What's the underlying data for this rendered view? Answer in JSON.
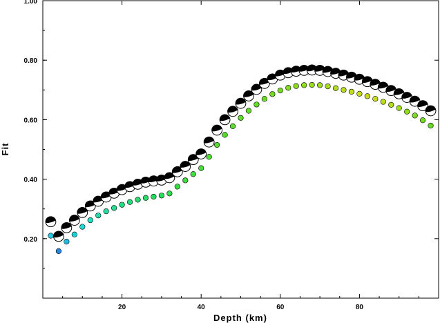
{
  "chart_data": {
    "type": "scatter",
    "title": "",
    "xlabel": "Depth (km)",
    "ylabel": "Fit",
    "xlim": [
      0,
      100
    ],
    "ylim": [
      0,
      1.0
    ],
    "x_ticks": [
      20,
      40,
      60,
      80
    ],
    "x_tick_labels": [
      "20",
      "40",
      "60",
      "80"
    ],
    "y_ticks": [
      0.2,
      0.4,
      0.6,
      0.8,
      1.0
    ],
    "y_tick_labels": [
      "0.20",
      "0.40",
      "0.60",
      "0.80",
      "1.00"
    ],
    "grid": false,
    "series": [
      {
        "marker": "focal-mechanism-beachball",
        "x": [
          2,
          4,
          6,
          8,
          10,
          12,
          14,
          16,
          18,
          20,
          22,
          24,
          26,
          28,
          30,
          32,
          34,
          36,
          38,
          40,
          42,
          44,
          46,
          48,
          50,
          52,
          54,
          56,
          58,
          60,
          62,
          64,
          66,
          68,
          70,
          72,
          74,
          76,
          78,
          80,
          82,
          84,
          86,
          88,
          90,
          92,
          94,
          96,
          98
        ],
        "y": [
          0.257,
          0.208,
          0.237,
          0.262,
          0.288,
          0.31,
          0.326,
          0.34,
          0.353,
          0.365,
          0.375,
          0.383,
          0.39,
          0.394,
          0.397,
          0.405,
          0.425,
          0.443,
          0.466,
          0.485,
          0.525,
          0.565,
          0.6,
          0.628,
          0.655,
          0.68,
          0.702,
          0.722,
          0.737,
          0.75,
          0.758,
          0.763,
          0.766,
          0.767,
          0.766,
          0.762,
          0.756,
          0.75,
          0.743,
          0.736,
          0.728,
          0.719,
          0.709,
          0.698,
          0.687,
          0.675,
          0.662,
          0.647,
          0.63
        ]
      },
      {
        "marker": "small-circle-colored",
        "x": [
          2,
          4,
          6,
          8,
          10,
          12,
          14,
          16,
          18,
          20,
          22,
          24,
          26,
          28,
          30,
          32,
          34,
          36,
          38,
          40,
          42,
          44,
          46,
          48,
          50,
          52,
          54,
          56,
          58,
          60,
          62,
          64,
          66,
          68,
          70,
          72,
          74,
          76,
          78,
          80,
          82,
          84,
          86,
          88,
          90,
          92,
          94,
          96,
          98
        ],
        "y": [
          0.21,
          0.158,
          0.19,
          0.214,
          0.24,
          0.262,
          0.278,
          0.292,
          0.303,
          0.314,
          0.323,
          0.331,
          0.337,
          0.341,
          0.345,
          0.352,
          0.375,
          0.396,
          0.417,
          0.437,
          0.475,
          0.515,
          0.549,
          0.578,
          0.606,
          0.63,
          0.651,
          0.67,
          0.686,
          0.698,
          0.707,
          0.713,
          0.716,
          0.717,
          0.716,
          0.712,
          0.706,
          0.7,
          0.694,
          0.687,
          0.679,
          0.67,
          0.66,
          0.65,
          0.639,
          0.627,
          0.614,
          0.598,
          0.58
        ],
        "colors": [
          "#22c8e8",
          "#2a86dd",
          "#24b8e6",
          "#22d0dc",
          "#22d8d0",
          "#22dcc0",
          "#22dcb0",
          "#22dca0",
          "#22dc90",
          "#22dc84",
          "#22dc78",
          "#24dc70",
          "#26dc66",
          "#28dc5e",
          "#2adc58",
          "#30dc50",
          "#3adc46",
          "#40dc40",
          "#44dc3c",
          "#48dc38",
          "#4edc34",
          "#52dc30",
          "#56dc2e",
          "#5adc2c",
          "#5edc2a",
          "#62dc28",
          "#66dc26",
          "#6adc24",
          "#70dc22",
          "#78dc20",
          "#80dc1e",
          "#88dc1e",
          "#90dc1c",
          "#98dc1c",
          "#a0dc1c",
          "#a8dc1c",
          "#b0dc1c",
          "#b8dc1c",
          "#c0dc1c",
          "#c8dc1c",
          "#ccd81c",
          "#c8dc1c",
          "#bcdc1c",
          "#b0dc1c",
          "#a0dc1c",
          "#90dc1c",
          "#80dc1e",
          "#70dc22",
          "#62dc28"
        ]
      }
    ]
  }
}
